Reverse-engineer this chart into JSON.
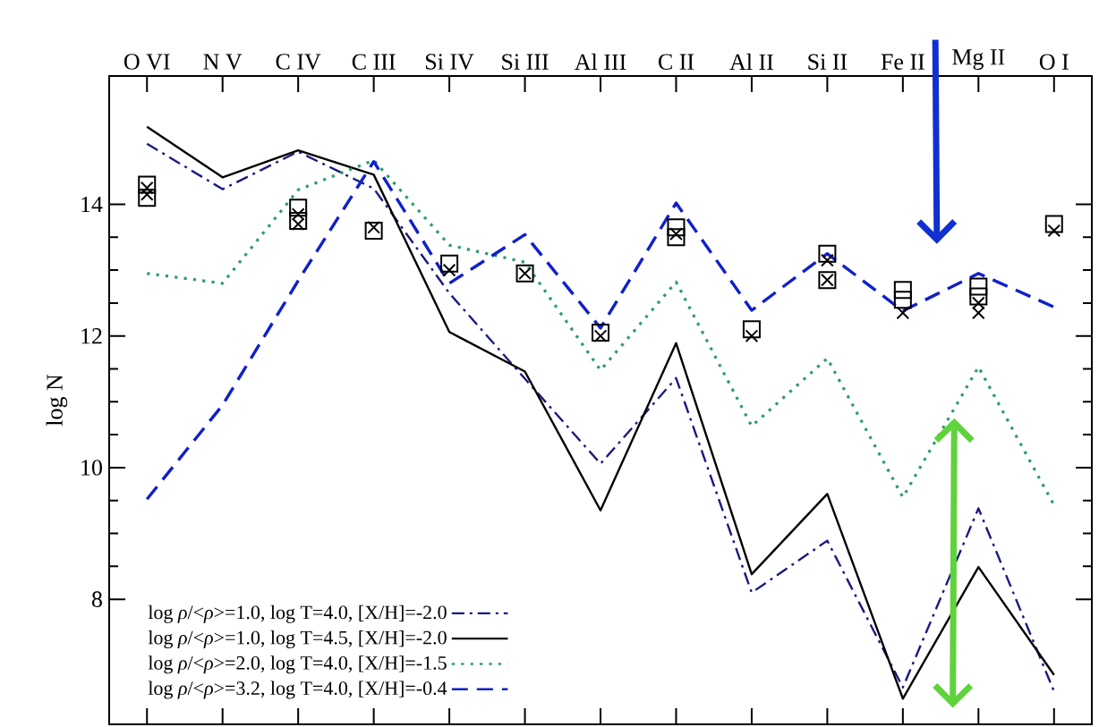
{
  "chart_data": {
    "type": "line",
    "ylabel": "log N",
    "categories": [
      "O VI",
      "N V",
      "C IV",
      "C III",
      "Si IV",
      "Si III",
      "Al III",
      "C II",
      "Al II",
      "Si II",
      "Fe II",
      "Mg II",
      "O I"
    ],
    "ylim": [
      6.1,
      15.95
    ],
    "yticks": [
      8,
      10,
      12,
      14
    ],
    "legend": "bottom left",
    "series": [
      {
        "name": "log *ρ*/<*ρ*>=1.0, log T=4.0, [X/H]=-2.0",
        "color": "#1a1a80",
        "line_style": "dashdot",
        "marker": "none",
        "values": [
          14.92,
          14.23,
          14.8,
          14.24,
          12.65,
          11.35,
          10.06,
          11.36,
          8.1,
          8.89,
          6.66,
          9.38,
          6.6
        ]
      },
      {
        "name": "log *ρ*/<*ρ*>=1.0, log T=4.5, [X/H]=-2.0",
        "color": "#000000",
        "line_style": "solid",
        "marker": "none",
        "values": [
          15.18,
          14.41,
          14.82,
          14.45,
          12.06,
          11.46,
          9.35,
          11.89,
          8.38,
          9.6,
          6.49,
          8.49,
          6.85
        ]
      },
      {
        "name": "log *ρ*/<*ρ*>=2.0, log T=4.0, [X/H]=-1.5",
        "color": "#2a9d6a",
        "line_style": "dotted",
        "marker": "none",
        "values": [
          12.95,
          12.8,
          14.22,
          14.67,
          13.38,
          13.12,
          11.48,
          12.82,
          10.63,
          11.66,
          9.55,
          11.53,
          9.43
        ]
      },
      {
        "name": "log *ρ*/<*ρ*>=3.2, log T=4.0, [X/H]=-0.4",
        "color": "#1020c8",
        "line_style": "dashed",
        "marker": "none",
        "values": [
          9.52,
          10.95,
          12.84,
          14.65,
          12.8,
          13.54,
          12.12,
          14.02,
          12.39,
          13.25,
          12.38,
          12.95,
          12.44
        ]
      },
      {
        "type": "scatter",
        "color": "#000000",
        "marker": "square",
        "values": [
          14.3,
          null,
          13.95,
          13.6,
          13.1,
          12.95,
          12.05,
          13.65,
          12.1,
          13.25,
          12.7,
          12.75,
          13.7
        ]
      },
      {
        "type": "scatter",
        "color": "#000000",
        "marker": "square",
        "values": [
          14.1,
          null,
          13.75,
          null,
          null,
          null,
          null,
          13.5,
          null,
          12.85,
          12.55,
          12.6,
          null
        ]
      },
      {
        "type": "scatter",
        "color": "#000000",
        "marker": "cross",
        "values": [
          14.25,
          null,
          13.85,
          13.65,
          13.0,
          12.95,
          12.0,
          13.55,
          12.0,
          13.15,
          12.35,
          12.5,
          13.6
        ]
      },
      {
        "type": "scatter",
        "color": "#000000",
        "marker": "cross",
        "values": [
          14.15,
          null,
          13.7,
          null,
          null,
          null,
          null,
          null,
          null,
          12.85,
          null,
          12.35,
          null
        ]
      }
    ]
  }
}
